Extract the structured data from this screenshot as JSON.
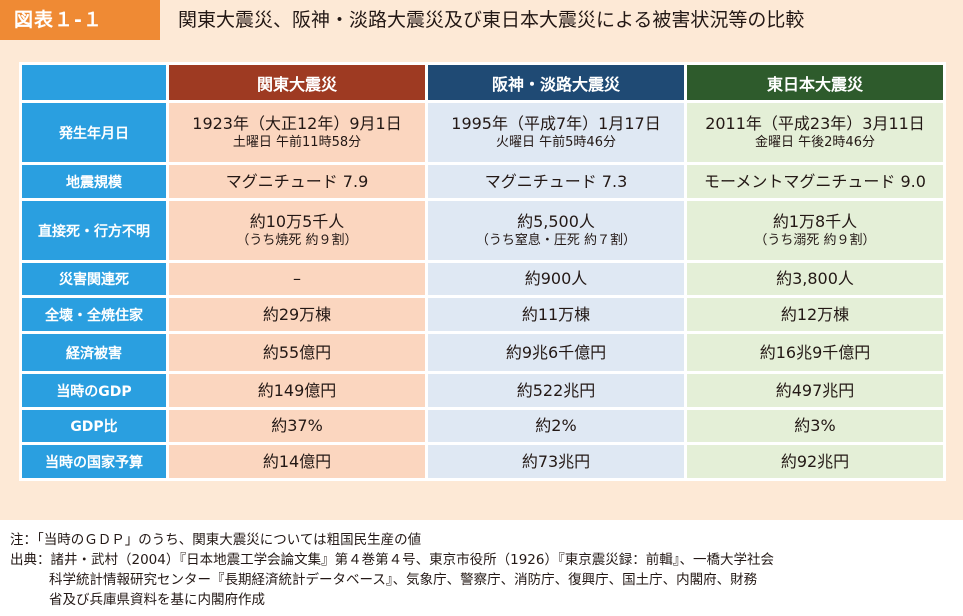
{
  "header": {
    "figure_label": "図表１-１",
    "title": "関東大震災、阪神・淡路大震災及び東日本大震災による被害状況等の比較"
  },
  "table": {
    "columns": [
      "関東大震災",
      "阪神・淡路大震災",
      "東日本大震災"
    ],
    "rows": [
      {
        "label": "発生年月日",
        "cells": [
          {
            "main": "1923年（大正12年）9月1日",
            "sub": "土曜日 午前11時58分"
          },
          {
            "main": "1995年（平成7年）1月17日",
            "sub": "火曜日 午前5時46分"
          },
          {
            "main": "2011年（平成23年）3月11日",
            "sub": "金曜日 午後2時46分"
          }
        ]
      },
      {
        "label": "地震規模",
        "cells": [
          {
            "main": "マグニチュード 7.9"
          },
          {
            "main": "マグニチュード 7.3"
          },
          {
            "main": "モーメントマグニチュード 9.0"
          }
        ]
      },
      {
        "label": "直接死・行方不明",
        "cells": [
          {
            "main": "約10万5千人",
            "sub": "（うち焼死 約９割）"
          },
          {
            "main": "約5,500人",
            "sub": "（うち窒息・圧死 約７割）"
          },
          {
            "main": "約1万8千人",
            "sub": "（うち溺死 約９割）"
          }
        ]
      },
      {
        "label": "災害関連死",
        "cells": [
          {
            "main": "–"
          },
          {
            "main": "約900人"
          },
          {
            "main": "約3,800人"
          }
        ]
      },
      {
        "label": "全壊・全焼住家",
        "cells": [
          {
            "main": "約29万棟"
          },
          {
            "main": "約11万棟"
          },
          {
            "main": "約12万棟"
          }
        ]
      },
      {
        "label": "経済被害",
        "cells": [
          {
            "main": "約55億円"
          },
          {
            "main": "約9兆6千億円"
          },
          {
            "main": "約16兆9千億円"
          }
        ]
      },
      {
        "label": "当時のGDP",
        "cells": [
          {
            "main": "約149億円"
          },
          {
            "main": "約522兆円"
          },
          {
            "main": "約497兆円"
          }
        ]
      },
      {
        "label": "GDP比",
        "cells": [
          {
            "main": "約37%"
          },
          {
            "main": "約2%"
          },
          {
            "main": "約3%"
          }
        ]
      },
      {
        "label": "当時の国家予算",
        "cells": [
          {
            "main": "約14億円"
          },
          {
            "main": "約73兆円"
          },
          {
            "main": "約92兆円"
          }
        ]
      }
    ]
  },
  "notes": {
    "note": "注：「当時のＧＤＰ」のうち、関東大震災については粗国民生産の値",
    "source_lines": [
      "出典：諸井・武村（2004）『日本地震工学会論文集』第４巻第４号、東京市役所（1926）『東京震災録：前輯』、一橋大学社会",
      "科学統計情報研究センター『長期経済統計データベース』、気象庁、警察庁、消防庁、復興庁、国土庁、内閣府、財務",
      "省及び兵庫県資料を基に内閣府作成"
    ]
  }
}
